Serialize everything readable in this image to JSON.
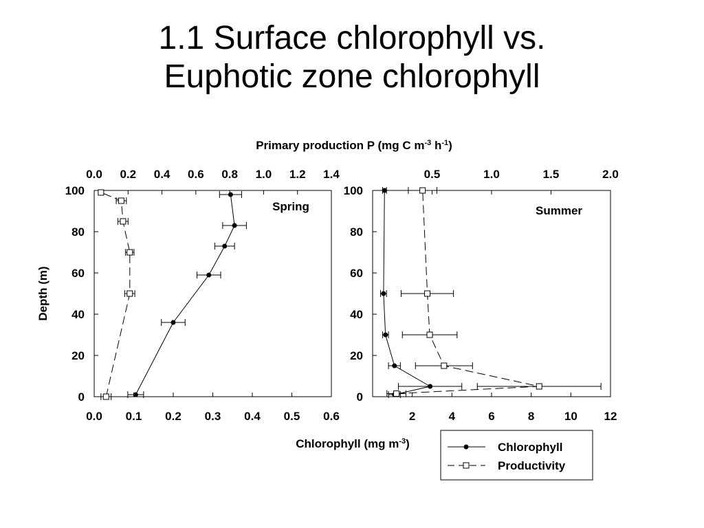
{
  "slide": {
    "title_line1": "1.1 Surface chlorophyll vs.",
    "title_line2": "Euphotic zone chlorophyll"
  },
  "shared": {
    "top_axis_label": "Primary production P (mg C m",
    "top_axis_sup1": "-3",
    "top_axis_mid": " h",
    "top_axis_sup2": "-1",
    "top_axis_end": ")",
    "bottom_axis_label": "Chlorophyll (mg m",
    "bottom_axis_sup": "-3",
    "bottom_axis_end": ")",
    "y_axis_label": "Depth (m)"
  },
  "legend": {
    "chlorophyll": "Chlorophyll",
    "productivity": "Productivity"
  },
  "colors": {
    "line": "#000000",
    "background": "#ffffff"
  },
  "chart_data": [
    {
      "type": "line",
      "panel_label": "Spring",
      "ylim": [
        0,
        100
      ],
      "y_ticks": [
        0,
        20,
        40,
        60,
        80,
        100
      ],
      "y_tick_labels": [
        "0",
        "20",
        "40",
        "60",
        "80",
        "100"
      ],
      "chl_xlim": [
        0,
        0.6
      ],
      "chl_ticks": [
        0.0,
        0.1,
        0.2,
        0.3,
        0.4,
        0.5,
        0.6
      ],
      "chl_tick_labels": [
        "0.0",
        "0.1",
        "0.2",
        "0.3",
        "0.4",
        "0.5",
        "0.6"
      ],
      "prod_xlim": [
        0,
        1.4
      ],
      "prod_ticks": [
        0.0,
        0.2,
        0.4,
        0.6,
        0.8,
        1.0,
        1.2,
        1.4
      ],
      "prod_tick_labels": [
        "0.0",
        "0.2",
        "0.4",
        "0.6",
        "0.8",
        "1.0",
        "1.2",
        "1.4"
      ],
      "series": [
        {
          "name": "Chlorophyll",
          "axis": "bottom",
          "marker": "filled-circle",
          "dash": "solid",
          "depth": [
            1,
            36,
            59,
            73,
            83,
            98
          ],
          "x": [
            0.105,
            0.2,
            0.29,
            0.33,
            0.355,
            0.345
          ],
          "xerr": [
            0.02,
            0.03,
            0.03,
            0.025,
            0.03,
            0.028
          ]
        },
        {
          "name": "Productivity",
          "axis": "top",
          "marker": "open-square",
          "dash": "dashed",
          "depth": [
            0,
            50,
            70,
            85,
            95,
            99
          ],
          "x": [
            0.07,
            0.21,
            0.21,
            0.17,
            0.16,
            0.04
          ],
          "xerr": [
            0.03,
            0.03,
            0.025,
            0.03,
            0.03,
            0.0
          ]
        }
      ]
    },
    {
      "type": "line",
      "panel_label": "Summer",
      "ylim": [
        0,
        100
      ],
      "y_ticks": [
        0,
        20,
        40,
        60,
        80,
        100
      ],
      "y_tick_labels": [
        "0",
        "20",
        "40",
        "60",
        "80",
        "100"
      ],
      "chl_xlim": [
        0,
        12
      ],
      "chl_ticks": [
        2,
        4,
        6,
        8,
        10,
        12
      ],
      "chl_tick_labels": [
        "2",
        "4",
        "6",
        "8",
        "10",
        "12"
      ],
      "prod_xlim": [
        0,
        2.0
      ],
      "prod_ticks": [
        0.5,
        1.0,
        1.5,
        2.0
      ],
      "prod_tick_labels": [
        "0.5",
        "1.0",
        "1.5",
        "2.0"
      ],
      "series": [
        {
          "name": "Chlorophyll",
          "axis": "bottom",
          "marker": "filled-circle",
          "dash": "solid",
          "depth": [
            1,
            5,
            15,
            30,
            50,
            100
          ],
          "x": [
            1.1,
            2.9,
            1.1,
            0.65,
            0.55,
            0.6
          ],
          "xerr": [
            0.3,
            1.6,
            0.3,
            0.15,
            0.15,
            0.1
          ]
        },
        {
          "name": "Productivity",
          "axis": "top",
          "marker": "open-square",
          "dash": "dashed",
          "depth": [
            1.5,
            5,
            15,
            30,
            50,
            100
          ],
          "x": [
            0.2,
            1.4,
            0.6,
            0.48,
            0.46,
            0.42
          ],
          "xerr": [
            0.08,
            0.52,
            0.24,
            0.23,
            0.22,
            0.12
          ]
        }
      ]
    }
  ]
}
